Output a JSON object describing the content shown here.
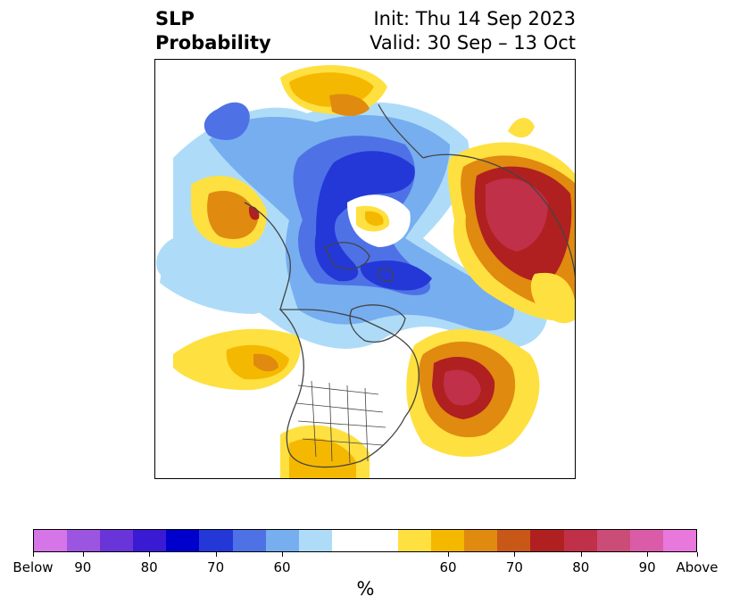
{
  "title": {
    "variable": "SLP",
    "variable_line2": "Probability",
    "init": "Init: Thu 14 Sep 2023",
    "valid": "Valid: 30 Sep – 13 Oct"
  },
  "map": {
    "projection": "north-polar-stereographic",
    "region": "Northern Hemisphere"
  },
  "colorbar": {
    "unit": "%",
    "tick_labels": [
      "Below",
      "90",
      "80",
      "70",
      "60",
      "60",
      "70",
      "80",
      "90",
      "Above"
    ],
    "below_colors": [
      "#d675e8",
      "#9c55e0",
      "#6a35d8",
      "#3b1ad4",
      "#0000cc",
      "#2438d8",
      "#4e72e6",
      "#76aef0",
      "#aedcf8"
    ],
    "neutral_color": "#ffffff",
    "above_colors": [
      "#fee040",
      "#f5b800",
      "#e08a10",
      "#c85818",
      "#b02020",
      "#c03048",
      "#cc4c78",
      "#da5ca8",
      "#e878dc"
    ]
  }
}
